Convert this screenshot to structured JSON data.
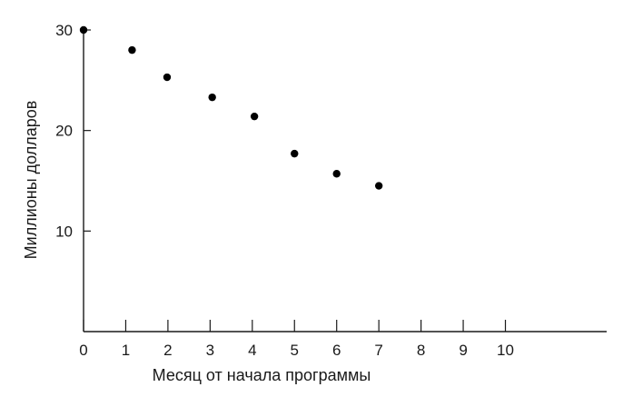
{
  "chart_data": {
    "type": "scatter",
    "title": "",
    "xlabel": "Месяц от начала программы",
    "ylabel": "Миллионы долларов",
    "xlim": [
      0,
      12.4
    ],
    "ylim": [
      0,
      30
    ],
    "xticks": [
      0,
      1,
      2,
      3,
      4,
      5,
      6,
      7,
      8,
      9,
      10
    ],
    "yticks": [
      10,
      20,
      30
    ],
    "grid": false,
    "legend": "none",
    "point_color": "#000000",
    "series": [
      {
        "x": [
          0,
          1.15,
          1.98,
          3.05,
          4.05,
          5.0,
          6.0,
          7.0
        ],
        "y": [
          30,
          28,
          25.3,
          23.3,
          21.4,
          17.7,
          15.7,
          14.5
        ]
      }
    ]
  }
}
